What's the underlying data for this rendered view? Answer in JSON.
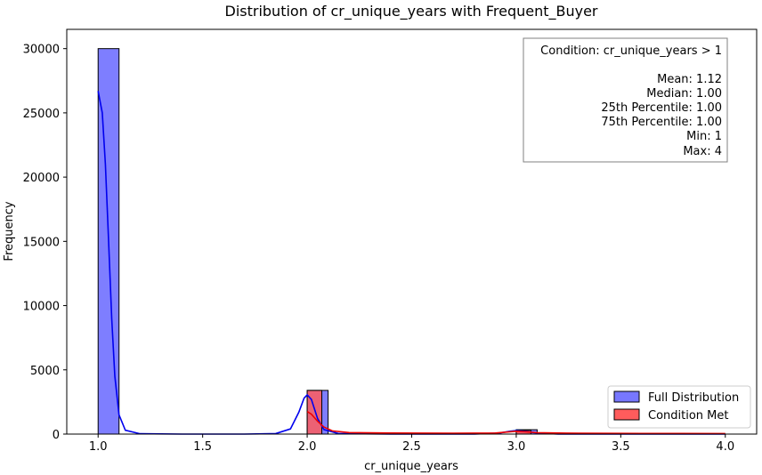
{
  "chart_data": {
    "type": "bar",
    "title": "Distribution of cr_unique_years with Frequent_Buyer",
    "xlabel": "cr_unique_years",
    "ylabel": "Frequency",
    "xlim": [
      0.85,
      4.15
    ],
    "ylim": [
      0,
      31500
    ],
    "xticks": [
      1.0,
      1.5,
      2.0,
      2.5,
      3.0,
      3.5,
      4.0
    ],
    "xtick_labels": [
      "1.0",
      "1.5",
      "2.0",
      "2.5",
      "3.0",
      "3.5",
      "4.0"
    ],
    "yticks": [
      0,
      5000,
      10000,
      15000,
      20000,
      25000,
      30000
    ],
    "ytick_labels": [
      "0",
      "5000",
      "10000",
      "15000",
      "20000",
      "25000",
      "30000"
    ],
    "grid": false,
    "legend_position": "lower-right",
    "series": [
      {
        "name": "Full Distribution",
        "color": "#7777ff",
        "edge": "#000000",
        "bars": [
          {
            "x0": 1.0,
            "x1": 1.1,
            "value": 30000
          },
          {
            "x0": 2.0,
            "x1": 2.1,
            "value": 3400
          },
          {
            "x0": 3.0,
            "x1": 3.1,
            "value": 340
          }
        ],
        "kde_color": "#0000ee",
        "kde": [
          [
            1.0,
            26700
          ],
          [
            1.02,
            25000
          ],
          [
            1.035,
            21000
          ],
          [
            1.05,
            15000
          ],
          [
            1.065,
            9000
          ],
          [
            1.08,
            4500
          ],
          [
            1.1,
            1500
          ],
          [
            1.13,
            300
          ],
          [
            1.2,
            30
          ],
          [
            1.4,
            0
          ],
          [
            1.7,
            0
          ],
          [
            1.85,
            40
          ],
          [
            1.92,
            400
          ],
          [
            1.96,
            1700
          ],
          [
            1.985,
            2800
          ],
          [
            2.0,
            3050
          ],
          [
            2.02,
            2700
          ],
          [
            2.05,
            1200
          ],
          [
            2.08,
            350
          ],
          [
            2.15,
            40
          ],
          [
            2.4,
            0
          ],
          [
            2.8,
            10
          ],
          [
            2.92,
            80
          ],
          [
            2.97,
            220
          ],
          [
            3.0,
            270
          ],
          [
            3.04,
            220
          ],
          [
            3.1,
            80
          ],
          [
            3.2,
            10
          ],
          [
            3.5,
            0
          ],
          [
            4.0,
            0
          ]
        ]
      },
      {
        "name": "Condition Met",
        "color": "#ff5c5c",
        "edge": "#000000",
        "bars": [
          {
            "x0": 2.0,
            "x1": 2.07,
            "value": 3400
          },
          {
            "x0": 3.0,
            "x1": 3.07,
            "value": 300
          }
        ],
        "kde_color": "#ee0000",
        "kde": [
          [
            2.0,
            1750
          ],
          [
            2.02,
            1550
          ],
          [
            2.05,
            1000
          ],
          [
            2.08,
            550
          ],
          [
            2.12,
            250
          ],
          [
            2.2,
            120
          ],
          [
            2.4,
            80
          ],
          [
            2.7,
            60
          ],
          [
            2.9,
            80
          ],
          [
            2.97,
            180
          ],
          [
            3.0,
            220
          ],
          [
            3.04,
            190
          ],
          [
            3.1,
            110
          ],
          [
            3.3,
            60
          ],
          [
            3.6,
            50
          ],
          [
            4.0,
            40
          ]
        ]
      }
    ],
    "annotation": {
      "condition": "Condition: cr_unique_years > 1",
      "stats": [
        "Mean: 1.12",
        "Median: 1.00",
        "25th Percentile: 1.00",
        "75th Percentile: 1.00",
        "Min: 1",
        "Max: 4"
      ]
    }
  }
}
